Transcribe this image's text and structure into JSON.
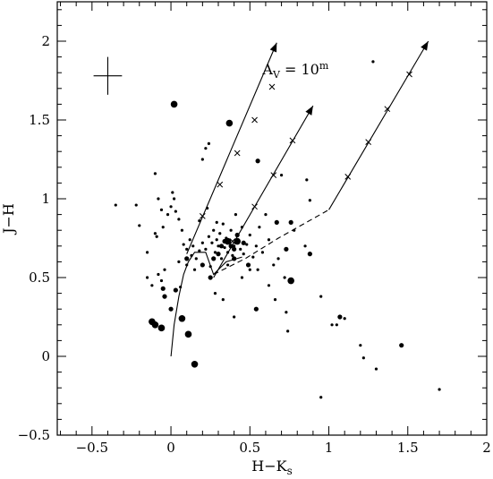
{
  "chart_data": {
    "type": "scatter",
    "xlabel": "H−K",
    "xlabel_sub": "s",
    "ylabel": "J−H",
    "xlim": [
      -0.72,
      2.0
    ],
    "ylim": [
      -0.5,
      2.25
    ],
    "xticks": [
      -0.5,
      0,
      0.5,
      1,
      1.5,
      2
    ],
    "xtick_labels": [
      "−0.5",
      "0",
      "0.5",
      "1",
      "1.5",
      "2"
    ],
    "yticks": [
      -0.5,
      0,
      0.5,
      1,
      1.5,
      2
    ],
    "ytick_labels": [
      "−0.5",
      "0",
      "0.5",
      "1",
      "1.5",
      "2"
    ],
    "annotation": {
      "main": "A",
      "sub": "V",
      "rest": " = 10",
      "sup": "m",
      "x": 0.58,
      "y": 1.79
    },
    "error_cross": {
      "x": -0.4,
      "y": 1.78,
      "dx": 0.09,
      "dy": 0.12
    },
    "curves": [
      {
        "name": "main-sequence",
        "style": "solid",
        "points": [
          [
            0.0,
            0.0
          ],
          [
            0.02,
            0.2
          ],
          [
            0.05,
            0.38
          ],
          [
            0.08,
            0.52
          ],
          [
            0.11,
            0.6
          ],
          [
            0.15,
            0.66
          ],
          [
            0.22,
            0.66
          ],
          [
            0.27,
            0.52
          ],
          [
            0.35,
            0.6
          ],
          [
            0.45,
            0.63
          ]
        ]
      },
      {
        "name": "locus-dashed",
        "style": "dashed",
        "points": [
          [
            0.27,
            0.52
          ],
          [
            0.47,
            0.62
          ],
          [
            0.68,
            0.75
          ],
          [
            1.0,
            0.93
          ]
        ]
      }
    ],
    "reddening_vectors": [
      {
        "start": [
          0.1,
          0.65
        ],
        "end": [
          0.67,
          1.99
        ],
        "ticks": [
          [
            0.2,
            0.89
          ],
          [
            0.31,
            1.09
          ],
          [
            0.42,
            1.29
          ],
          [
            0.53,
            1.5
          ],
          [
            0.64,
            1.71
          ]
        ]
      },
      {
        "start": [
          0.27,
          0.5
        ],
        "end": [
          0.9,
          1.59
        ],
        "ticks": [
          [
            0.39,
            0.73
          ],
          [
            0.53,
            0.95
          ],
          [
            0.65,
            1.15
          ],
          [
            0.77,
            1.37
          ]
        ]
      },
      {
        "start": [
          1.0,
          0.93
        ],
        "end": [
          1.63,
          2.0
        ],
        "ticks": [
          [
            1.12,
            1.14
          ],
          [
            1.25,
            1.36
          ],
          [
            1.37,
            1.57
          ],
          [
            1.51,
            1.79
          ]
        ]
      }
    ],
    "points_small": [
      [
        -0.35,
        0.96
      ],
      [
        -0.22,
        0.96
      ],
      [
        -0.2,
        0.83
      ],
      [
        -0.15,
        0.66
      ],
      [
        -0.1,
        1.16
      ],
      [
        -0.08,
        1.0
      ],
      [
        -0.06,
        0.93
      ],
      [
        -0.05,
        0.82
      ],
      [
        -0.1,
        0.78
      ],
      [
        -0.09,
        0.76
      ],
      [
        -0.15,
        0.5
      ],
      [
        -0.12,
        0.45
      ],
      [
        -0.08,
        0.52
      ],
      [
        -0.06,
        0.48
      ],
      [
        -0.04,
        0.55
      ],
      [
        -0.02,
        0.9
      ],
      [
        0.0,
        0.95
      ],
      [
        0.01,
        1.04
      ],
      [
        0.02,
        1.0
      ],
      [
        0.03,
        0.92
      ],
      [
        0.05,
        0.87
      ],
      [
        0.07,
        0.8
      ],
      [
        0.08,
        0.71
      ],
      [
        0.1,
        0.68
      ],
      [
        0.12,
        0.74
      ],
      [
        0.13,
        0.64
      ],
      [
        0.14,
        0.7
      ],
      [
        0.16,
        0.62
      ],
      [
        0.18,
        0.67
      ],
      [
        0.2,
        0.72
      ],
      [
        0.22,
        0.68
      ],
      [
        0.24,
        0.76
      ],
      [
        0.26,
        0.72
      ],
      [
        0.27,
        0.8
      ],
      [
        0.28,
        0.66
      ],
      [
        0.29,
        0.74
      ],
      [
        0.3,
        0.7
      ],
      [
        0.31,
        0.78
      ],
      [
        0.32,
        0.62
      ],
      [
        0.33,
        0.84
      ],
      [
        0.34,
        0.69
      ],
      [
        0.35,
        0.75
      ],
      [
        0.36,
        0.66
      ],
      [
        0.37,
        0.72
      ],
      [
        0.38,
        0.8
      ],
      [
        0.39,
        0.64
      ],
      [
        0.4,
        0.7
      ],
      [
        0.42,
        0.74
      ],
      [
        0.44,
        0.68
      ],
      [
        0.46,
        0.65
      ],
      [
        0.48,
        0.71
      ],
      [
        0.5,
        0.77
      ],
      [
        0.52,
        0.63
      ],
      [
        0.54,
        0.7
      ],
      [
        0.56,
        0.82
      ],
      [
        0.58,
        0.66
      ],
      [
        0.6,
        0.9
      ],
      [
        0.62,
        0.74
      ],
      [
        0.65,
        0.58
      ],
      [
        0.68,
        0.62
      ],
      [
        0.7,
        1.15
      ],
      [
        0.72,
        0.5
      ],
      [
        0.78,
        0.8
      ],
      [
        0.85,
        0.7
      ],
      [
        0.86,
        1.12
      ],
      [
        0.88,
        0.99
      ],
      [
        0.2,
        1.25
      ],
      [
        0.22,
        1.32
      ],
      [
        0.24,
        1.35
      ],
      [
        0.28,
        0.4
      ],
      [
        0.33,
        0.36
      ],
      [
        0.4,
        0.25
      ],
      [
        0.45,
        0.5
      ],
      [
        0.55,
        0.55
      ],
      [
        0.62,
        0.45
      ],
      [
        0.66,
        0.36
      ],
      [
        0.73,
        0.28
      ],
      [
        0.74,
        0.16
      ],
      [
        0.95,
        0.38
      ],
      [
        1.02,
        0.2
      ],
      [
        1.05,
        0.2
      ],
      [
        1.1,
        0.24
      ],
      [
        1.2,
        0.07
      ],
      [
        1.22,
        -0.01
      ],
      [
        1.28,
        1.87
      ],
      [
        1.3,
        -0.08
      ],
      [
        1.7,
        -0.21
      ],
      [
        0.95,
        -0.26
      ],
      [
        0.5,
        0.55
      ],
      [
        0.45,
        0.82
      ],
      [
        0.25,
        0.57
      ],
      [
        0.15,
        0.55
      ],
      [
        0.1,
        0.58
      ],
      [
        0.06,
        0.44
      ],
      [
        0.05,
        0.6
      ],
      [
        0.18,
        0.86
      ],
      [
        0.23,
        0.94
      ],
      [
        0.29,
        0.85
      ],
      [
        0.36,
        0.58
      ],
      [
        0.41,
        0.9
      ]
    ],
    "points_medium": [
      [
        -0.05,
        0.43
      ],
      [
        -0.04,
        0.38
      ],
      [
        0.0,
        0.3
      ],
      [
        0.03,
        0.42
      ],
      [
        0.1,
        0.62
      ],
      [
        0.2,
        0.58
      ],
      [
        0.25,
        0.5
      ],
      [
        0.3,
        0.65
      ],
      [
        0.32,
        0.7
      ],
      [
        0.34,
        0.73
      ],
      [
        0.38,
        0.7
      ],
      [
        0.4,
        0.62
      ],
      [
        0.42,
        0.77
      ],
      [
        0.46,
        0.72
      ],
      [
        0.49,
        0.58
      ],
      [
        0.54,
        0.3
      ],
      [
        0.67,
        0.85
      ],
      [
        0.73,
        0.68
      ],
      [
        0.76,
        0.85
      ],
      [
        0.88,
        0.65
      ],
      [
        1.07,
        0.25
      ],
      [
        1.46,
        0.07
      ],
      [
        0.55,
        1.24
      ],
      [
        0.4,
        0.68
      ],
      [
        0.27,
        0.62
      ]
    ],
    "points_large": [
      [
        -0.12,
        0.22
      ],
      [
        -0.1,
        0.2
      ],
      [
        -0.06,
        0.18
      ],
      [
        0.07,
        0.24
      ],
      [
        0.11,
        0.14
      ],
      [
        0.15,
        -0.05
      ],
      [
        0.02,
        1.6
      ],
      [
        0.37,
        1.48
      ],
      [
        0.76,
        0.48
      ],
      [
        0.36,
        0.73
      ],
      [
        0.42,
        0.73
      ]
    ]
  }
}
